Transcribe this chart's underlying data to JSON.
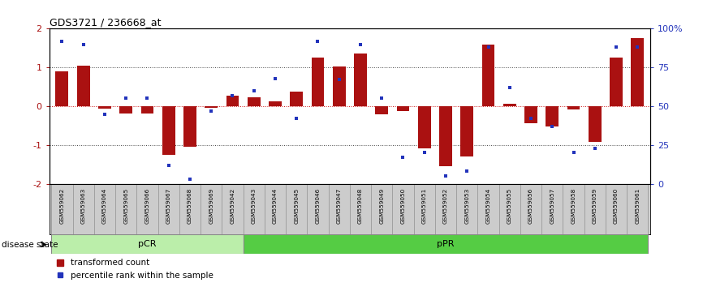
{
  "title": "GDS3721 / 236668_at",
  "samples": [
    "GSM559062",
    "GSM559063",
    "GSM559064",
    "GSM559065",
    "GSM559066",
    "GSM559067",
    "GSM559068",
    "GSM559069",
    "GSM559042",
    "GSM559043",
    "GSM559044",
    "GSM559045",
    "GSM559046",
    "GSM559047",
    "GSM559048",
    "GSM559049",
    "GSM559050",
    "GSM559051",
    "GSM559052",
    "GSM559053",
    "GSM559054",
    "GSM559055",
    "GSM559056",
    "GSM559057",
    "GSM559058",
    "GSM559059",
    "GSM559060",
    "GSM559061"
  ],
  "bar_values": [
    0.9,
    1.05,
    -0.07,
    -0.18,
    -0.18,
    -1.25,
    -1.05,
    -0.05,
    0.28,
    0.22,
    0.12,
    0.38,
    1.25,
    1.02,
    1.35,
    -0.22,
    -0.12,
    -1.08,
    -1.55,
    -1.3,
    1.6,
    0.06,
    -0.45,
    -0.52,
    -0.09,
    -0.92,
    1.25,
    1.75
  ],
  "blue_values": [
    92,
    90,
    45,
    55,
    55,
    12,
    3,
    47,
    57,
    60,
    68,
    42,
    92,
    67,
    90,
    55,
    17,
    20,
    5,
    8,
    88,
    62,
    42,
    37,
    20,
    23,
    88,
    88
  ],
  "pCR_count": 9,
  "pPR_count": 19,
  "ylim": [
    -2,
    2
  ],
  "y_left_ticks": [
    -2,
    -1,
    0,
    1,
    2
  ],
  "y_right_ticks": [
    0,
    25,
    50,
    75,
    100
  ],
  "bar_color": "#AA1111",
  "blue_color": "#2233BB",
  "dotted_line_color": "#444444",
  "zero_line_color": "#CC1111",
  "pCR_color": "#BBEEAA",
  "pPR_color": "#55CC44",
  "legend_red_label": "transformed count",
  "legend_blue_label": "percentile rank within the sample",
  "disease_state_label": "disease state"
}
